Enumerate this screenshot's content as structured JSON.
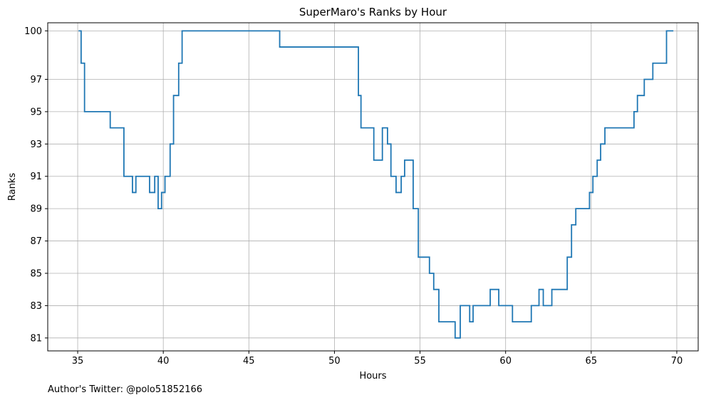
{
  "chart_data": {
    "type": "line",
    "drawstyle": "steps-post",
    "title": "SuperMaro's Ranks by Hour",
    "xlabel": "Hours",
    "ylabel": "Ranks",
    "xlim": [
      33.25,
      71.25
    ],
    "ylim": [
      100.5,
      80.2
    ],
    "y_inverted": true,
    "grid": true,
    "legend": "none",
    "x_ticks": [
      35,
      40,
      45,
      50,
      55,
      60,
      65,
      70
    ],
    "y_ticks": [
      81,
      83,
      85,
      87,
      89,
      91,
      93,
      95,
      97,
      100
    ],
    "series_color": "#1f77b4",
    "points": [
      [
        35.05,
        100
      ],
      [
        35.2,
        98
      ],
      [
        35.4,
        95
      ],
      [
        36.9,
        94
      ],
      [
        37.7,
        91
      ],
      [
        38.2,
        90
      ],
      [
        38.4,
        91
      ],
      [
        39.2,
        90
      ],
      [
        39.5,
        91
      ],
      [
        39.7,
        89
      ],
      [
        39.9,
        90
      ],
      [
        40.1,
        91
      ],
      [
        40.4,
        93
      ],
      [
        40.6,
        96
      ],
      [
        40.9,
        98
      ],
      [
        41.1,
        100
      ],
      [
        46.8,
        99
      ],
      [
        51.4,
        96
      ],
      [
        51.55,
        94
      ],
      [
        52.3,
        92
      ],
      [
        52.8,
        94
      ],
      [
        53.1,
        93
      ],
      [
        53.3,
        91
      ],
      [
        53.6,
        90
      ],
      [
        53.9,
        91
      ],
      [
        54.1,
        92
      ],
      [
        54.6,
        89
      ],
      [
        54.9,
        86
      ],
      [
        55.55,
        85
      ],
      [
        55.8,
        84
      ],
      [
        56.1,
        82
      ],
      [
        57.05,
        81
      ],
      [
        57.35,
        83
      ],
      [
        57.9,
        82
      ],
      [
        58.1,
        83
      ],
      [
        59.1,
        84
      ],
      [
        59.6,
        83
      ],
      [
        60.4,
        82
      ],
      [
        61.5,
        83
      ],
      [
        61.95,
        84
      ],
      [
        62.2,
        83
      ],
      [
        62.7,
        84
      ],
      [
        63.6,
        86
      ],
      [
        63.85,
        88
      ],
      [
        64.1,
        89
      ],
      [
        64.9,
        90
      ],
      [
        65.1,
        91
      ],
      [
        65.35,
        92
      ],
      [
        65.55,
        93
      ],
      [
        65.8,
        94
      ],
      [
        67.5,
        95
      ],
      [
        67.7,
        96
      ],
      [
        68.1,
        97
      ],
      [
        68.6,
        98
      ],
      [
        69.4,
        100
      ],
      [
        69.8,
        100
      ]
    ]
  },
  "annotation": {
    "footnote": "Author's Twitter: @polo51852166"
  }
}
